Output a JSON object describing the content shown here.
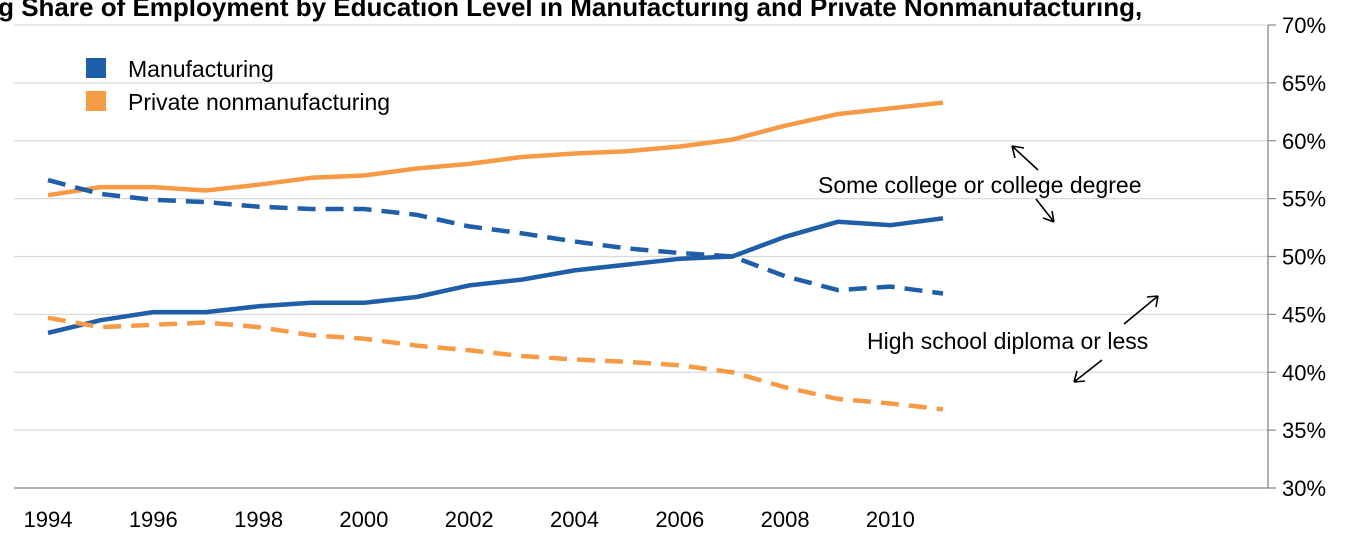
{
  "chart_data": {
    "type": "line",
    "title": "ing   Share of Employment by Education Level in Manufacturing and Private Nonmanufacturing,",
    "x": [
      1994,
      1995,
      1996,
      1997,
      1998,
      1999,
      2000,
      2001,
      2002,
      2003,
      2004,
      2005,
      2006,
      2007,
      2008,
      2009,
      2010,
      2011
    ],
    "x_ticks": [
      1994,
      1996,
      1998,
      2000,
      2002,
      2004,
      2006,
      2008,
      2010
    ],
    "y_ticks": [
      "30%",
      "35%",
      "40%",
      "45%",
      "50%",
      "55%",
      "60%",
      "65%",
      "70%"
    ],
    "ylim": [
      30,
      70
    ],
    "y_axis_side": "right",
    "grid": true,
    "legend": {
      "placement": "top-left",
      "entries": [
        {
          "label": "Manufacturing",
          "color": "#1f5ea8"
        },
        {
          "label": "Private nonmanufacturing",
          "color": "#f79a46"
        }
      ]
    },
    "series": [
      {
        "name": "Manufacturing",
        "education": "Some college or college degree",
        "color": "#1f5ea8",
        "style": "solid",
        "values": [
          43.4,
          44.5,
          45.2,
          45.2,
          45.7,
          46.0,
          46.0,
          46.5,
          47.5,
          48.0,
          48.8,
          49.3,
          49.8,
          50.0,
          51.7,
          53.0,
          52.7,
          53.3
        ]
      },
      {
        "name": "Private nonmanufacturing",
        "education": "Some college or college degree",
        "color": "#f79a46",
        "style": "solid",
        "values": [
          55.3,
          56.0,
          56.0,
          55.7,
          56.2,
          56.8,
          57.0,
          57.6,
          58.0,
          58.6,
          58.9,
          59.1,
          59.5,
          60.1,
          61.3,
          62.3,
          62.8,
          63.3
        ]
      },
      {
        "name": "Manufacturing",
        "education": "High school diploma or less",
        "color": "#1f5ea8",
        "style": "dashed",
        "values": [
          56.6,
          55.4,
          54.9,
          54.7,
          54.3,
          54.1,
          54.1,
          53.6,
          52.6,
          52.0,
          51.3,
          50.7,
          50.3,
          50.0,
          48.3,
          47.1,
          47.4,
          46.8
        ]
      },
      {
        "name": "Private nonmanufacturing",
        "education": "High school diploma or less",
        "color": "#f79a46",
        "style": "dashed",
        "values": [
          44.7,
          43.9,
          44.1,
          44.3,
          43.9,
          43.2,
          42.9,
          42.3,
          41.9,
          41.4,
          41.1,
          40.9,
          40.6,
          40.0,
          38.7,
          37.7,
          37.3,
          36.8
        ]
      }
    ],
    "annotations": [
      "Some college or college degree",
      "High school  diploma or less"
    ]
  }
}
